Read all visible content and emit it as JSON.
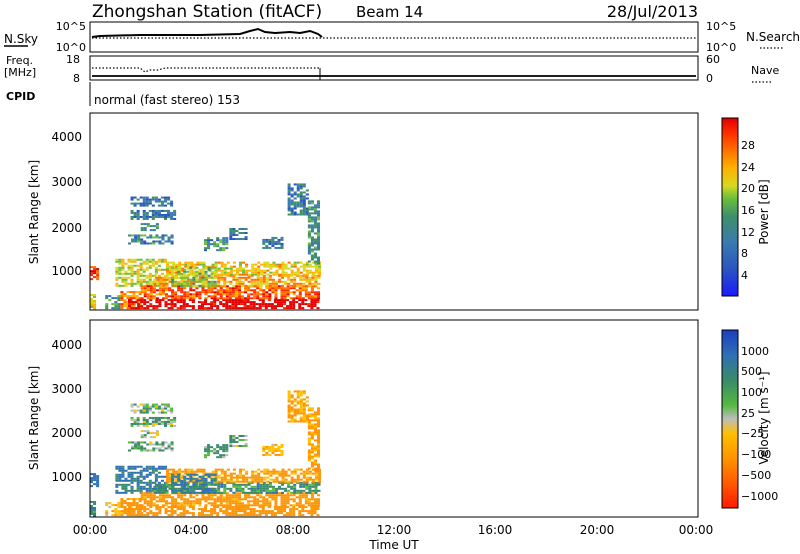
{
  "header": {
    "station": "Zhongshan Station (fitACF)",
    "beam": "Beam 14",
    "date": "28/Jul/2013"
  },
  "status_panel": {
    "nsky_label": "N.Sky",
    "nsky_ticks": [
      "10^5",
      "10^0"
    ],
    "nsearch_label": "N.Search",
    "nsearch_ticks": [
      "10^5",
      "10^0"
    ],
    "freq_label": "Freq.",
    "freq_unit": "[MHz]",
    "freq_ticks": [
      "18",
      "8"
    ],
    "nave_label": "Nave",
    "nave_ticks": [
      "60",
      "0"
    ],
    "cpid_label": "CPID",
    "cpid_text": "normal (fast stereo) 153"
  },
  "chart_data": [
    {
      "type": "heatmap",
      "name": "power",
      "xlabel": "",
      "ylabel": "Slant Range [km]",
      "xlim": [
        0,
        24
      ],
      "ylim": [
        180,
        4600
      ],
      "yticks": [
        "1000",
        "2000",
        "3000",
        "4000"
      ],
      "colorbar": {
        "label": "Power [dB]",
        "ticks": [
          "4",
          "8",
          "12",
          "16",
          "20",
          "24",
          "28"
        ],
        "range": [
          0,
          30
        ],
        "colors": [
          "#1a1aff",
          "#2a55c0",
          "#3a7ab0",
          "#3f8f6a",
          "#6cbf3a",
          "#d8d820",
          "#ffb000",
          "#ff7000",
          "#ff2a00",
          "#e00000"
        ]
      },
      "data_extent_hours": [
        0,
        9.1
      ]
    },
    {
      "type": "heatmap",
      "name": "velocity",
      "xlabel": "Time UT",
      "ylabel": "Slant Range [km]",
      "xlim": [
        0,
        24
      ],
      "ylim": [
        180,
        4600
      ],
      "xticks": [
        "00:00",
        "04:00",
        "08:00",
        "12:00",
        "16:00",
        "20:00",
        "00:00"
      ],
      "yticks": [
        "1000",
        "2000",
        "3000",
        "4000"
      ],
      "colorbar": {
        "label": "Velocity [m s⁻¹]",
        "ticks": [
          "1000",
          "500",
          "100",
          "25",
          "−25",
          "−100",
          "−500",
          "−1000"
        ],
        "colors": [
          "#1a3fc0",
          "#2f6fb5",
          "#3a8a6a",
          "#55b840",
          "#bdbdbd",
          "#ffc000",
          "#ff9400",
          "#ff5a00",
          "#ff1a00"
        ]
      },
      "data_extent_hours": [
        0,
        9.1
      ]
    }
  ],
  "range_gates": [
    {
      "t0": 0.0,
      "t1": 0.3,
      "r0": 850,
      "r1": 1150,
      "p": 26,
      "v": 300
    },
    {
      "t0": 0.0,
      "t1": 0.2,
      "r0": 180,
      "r1": 500,
      "p": 18,
      "v": 80
    },
    {
      "t0": 0.6,
      "t1": 1.2,
      "r0": 200,
      "r1": 500,
      "p": 10,
      "v": -60
    },
    {
      "t0": 1.2,
      "t1": 2.0,
      "r0": 200,
      "r1": 600,
      "p": 22,
      "v": -150
    },
    {
      "t0": 1.0,
      "t1": 3.0,
      "r0": 700,
      "r1": 1300,
      "p": 16,
      "v": 120
    },
    {
      "t0": 1.5,
      "t1": 9.0,
      "r0": 200,
      "r1": 420,
      "p": 30,
      "v": -200
    },
    {
      "t0": 2.0,
      "t1": 9.0,
      "r0": 420,
      "r1": 700,
      "p": 24,
      "v": -150
    },
    {
      "t0": 2.5,
      "t1": 9.0,
      "r0": 700,
      "r1": 950,
      "p": 20,
      "v": 60
    },
    {
      "t0": 3.0,
      "t1": 9.0,
      "r0": 950,
      "r1": 1250,
      "p": 18,
      "v": -120
    },
    {
      "t0": 3.2,
      "t1": 5.0,
      "r0": 700,
      "r1": 1150,
      "p": 14,
      "v": 110
    },
    {
      "t0": 1.5,
      "t1": 3.2,
      "r0": 1650,
      "r1": 1850,
      "p": 9,
      "v": 30
    },
    {
      "t0": 1.6,
      "t1": 3.4,
      "r0": 2200,
      "r1": 2400,
      "p": 8,
      "v": 20
    },
    {
      "t0": 1.6,
      "t1": 3.2,
      "r0": 2500,
      "r1": 2700,
      "p": 7,
      "v": 20
    },
    {
      "t0": 2.0,
      "t1": 2.7,
      "r0": 1950,
      "r1": 2100,
      "p": 10,
      "v": -30
    },
    {
      "t0": 4.5,
      "t1": 5.4,
      "r0": 1500,
      "r1": 1800,
      "p": 9,
      "v": 40
    },
    {
      "t0": 5.5,
      "t1": 6.2,
      "r0": 1750,
      "r1": 2000,
      "p": 8,
      "v": 30
    },
    {
      "t0": 6.8,
      "t1": 7.6,
      "r0": 1550,
      "r1": 1800,
      "p": 8,
      "v": -80
    },
    {
      "t0": 7.8,
      "t1": 8.6,
      "r0": 2300,
      "r1": 3000,
      "p": 8,
      "v": -110
    },
    {
      "t0": 8.6,
      "t1": 9.0,
      "r0": 1200,
      "r1": 2600,
      "p": 10,
      "v": -120
    }
  ]
}
